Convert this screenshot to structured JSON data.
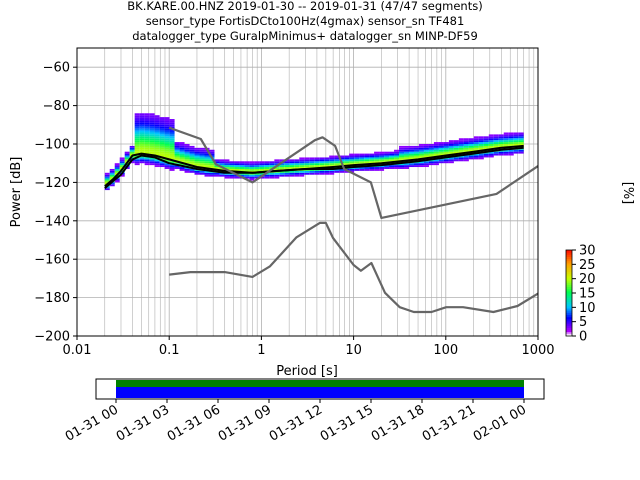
{
  "chart_data": [
    {
      "type": "heatmap",
      "title_lines": [
        "BK.KARE.00.HNZ   2019-01-30 -- 2019-01-31  (47/47 segments)",
        "sensor_type FortisDCto100Hz(4gmax) sensor_sn TF481",
        "datalogger_type GuralpMinimus+ datalogger_sn MINP-DF59"
      ],
      "xlabel": "Period [s]",
      "ylabel": "Power [dB]",
      "xscale": "log",
      "xlim": [
        0.01,
        1000
      ],
      "ylim": [
        -200,
        -50
      ],
      "x_ticks": [
        0.01,
        0.1,
        1,
        10,
        100,
        1000
      ],
      "x_tick_labels": [
        "0.01",
        "0.1",
        "1",
        "10",
        "100",
        "1000"
      ],
      "y_ticks": [
        -60,
        -80,
        -100,
        -120,
        -140,
        -160,
        -180,
        -200
      ],
      "y_tick_labels": [
        "−60",
        "−80",
        "−100",
        "−120",
        "−140",
        "−160",
        "−180",
        "−200"
      ],
      "grid": true,
      "series": [
        {
          "role": "median",
          "color": "#000000",
          "x": [
            0.02,
            0.025,
            0.03,
            0.04,
            0.05,
            0.07,
            0.1,
            0.2,
            0.4,
            0.8,
            1.5,
            3,
            6,
            10,
            20,
            50,
            100,
            200,
            400,
            700
          ],
          "y": [
            -122,
            -118,
            -114,
            -106,
            -105,
            -106,
            -108,
            -112,
            -114,
            -115,
            -114,
            -113,
            -112,
            -111,
            -110,
            -108,
            -106,
            -104,
            -102,
            -101
          ]
        },
        {
          "role": "mode",
          "color": "#000000",
          "x": [
            0.02,
            0.025,
            0.03,
            0.04,
            0.05,
            0.07,
            0.1,
            0.2,
            0.4,
            0.8,
            1.5,
            3,
            6,
            10,
            20,
            50,
            100,
            200,
            400,
            700
          ],
          "y": [
            -123,
            -119,
            -116,
            -108,
            -106,
            -107,
            -110,
            -113,
            -115,
            -115,
            -114,
            -113,
            -113,
            -112,
            -111,
            -109,
            -107,
            -105,
            -103,
            -102
          ]
        },
        {
          "role": "noise-model-high",
          "color": "#666666",
          "x": [
            0.1,
            0.22,
            0.32,
            0.8,
            3.8,
            4.6,
            6.3,
            7.9,
            15.4,
            20,
            354.8,
            1000
          ],
          "y": [
            -91.5,
            -97.4,
            -110.5,
            -120,
            -98,
            -96.5,
            -101,
            -113,
            -120,
            -138.5,
            -126,
            -111.5
          ]
        },
        {
          "role": "noise-model-low",
          "color": "#666666",
          "x": [
            0.1,
            0.17,
            0.4,
            0.8,
            1.24,
            2.4,
            4.3,
            5,
            6,
            10,
            12,
            15.6,
            21.9,
            31.6,
            45,
            70,
            101,
            154,
            328,
            600,
            1000
          ],
          "y": [
            -168,
            -166.7,
            -166.7,
            -169.2,
            -163.7,
            -148.6,
            -141.1,
            -141.1,
            -149,
            -163,
            -166,
            -162,
            -177.5,
            -185,
            -187.5,
            -187.5,
            -185,
            -185,
            -187.5,
            -184.4,
            -177.9
          ]
        }
      ],
      "colorbar": {
        "label": "[%]",
        "ticks": [
          0,
          5,
          10,
          15,
          20,
          25,
          30
        ],
        "tick_labels": [
          "0",
          "5",
          "10",
          "15",
          "20",
          "25",
          "30"
        ],
        "range": [
          0,
          30
        ]
      }
    },
    {
      "type": "bar",
      "role": "data-coverage",
      "x_tick_labels": [
        "01-31 00",
        "01-31 03",
        "01-31 06",
        "01-31 09",
        "01-31 12",
        "01-31 15",
        "01-31 18",
        "01-31 21",
        "02-01 00"
      ],
      "coverage_span_hours": [
        0,
        24
      ],
      "colors": {
        "green": "#008000",
        "blue": "#0000ff"
      }
    }
  ]
}
